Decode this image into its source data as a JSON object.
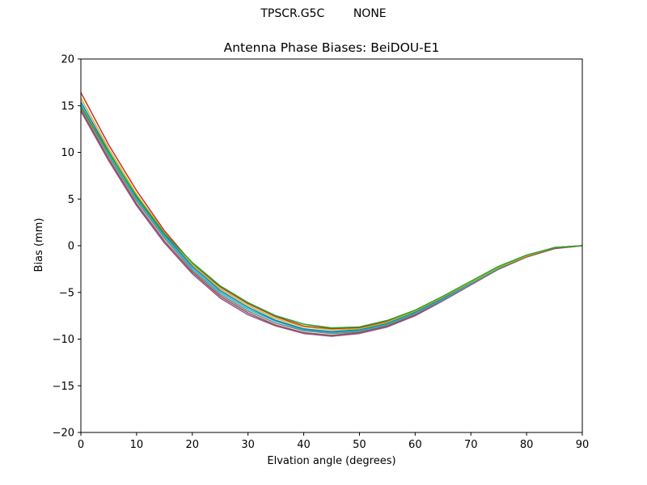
{
  "figure": {
    "suptitle": "TPSCR.G5C        NONE"
  },
  "chart_data": {
    "type": "line",
    "title": "Antenna Phase Biases: BeiDOU-E1",
    "xlabel": "Elvation angle (degrees)",
    "ylabel": "Bias (mm)",
    "xlim": [
      0,
      90
    ],
    "ylim": [
      -20,
      20
    ],
    "xticks": [
      0,
      10,
      20,
      30,
      40,
      50,
      60,
      70,
      80,
      90
    ],
    "yticks": [
      -20,
      -15,
      -10,
      -5,
      0,
      5,
      10,
      15,
      20
    ],
    "ytick_labels": [
      "−20",
      "−15",
      "−10",
      "−5",
      "0",
      "5",
      "10",
      "15",
      "20"
    ],
    "grid": false,
    "x": [
      0,
      5,
      10,
      15,
      20,
      25,
      30,
      35,
      40,
      45,
      50,
      55,
      60,
      65,
      70,
      75,
      80,
      85,
      90
    ],
    "series": [
      {
        "color": "#9b4f96",
        "values": [
          14.4,
          9.1,
          4.3,
          0.3,
          -3.0,
          -5.6,
          -7.4,
          -8.6,
          -9.4,
          -9.7,
          -9.4,
          -8.7,
          -7.5,
          -5.9,
          -4.2,
          -2.5,
          -1.2,
          -0.3,
          0.0
        ]
      },
      {
        "color": "#8c564b",
        "values": [
          14.6,
          9.3,
          4.5,
          0.5,
          -2.8,
          -5.4,
          -7.2,
          -8.5,
          -9.3,
          -9.6,
          -9.3,
          -8.6,
          -7.4,
          -5.8,
          -4.1,
          -2.5,
          -1.2,
          -0.3,
          0.0
        ]
      },
      {
        "color": "#7f7f7f",
        "values": [
          14.9,
          9.6,
          4.8,
          0.8,
          -2.6,
          -5.2,
          -7.0,
          -8.3,
          -9.1,
          -9.4,
          -9.2,
          -8.5,
          -7.3,
          -5.8,
          -4.1,
          -2.4,
          -1.1,
          -0.2,
          0.0
        ]
      },
      {
        "color": "#17becf",
        "values": [
          15.1,
          9.8,
          5.0,
          1.0,
          -2.4,
          -5.0,
          -6.8,
          -8.1,
          -9.0,
          -9.3,
          -9.1,
          -8.4,
          -7.2,
          -5.7,
          -4.0,
          -2.4,
          -1.1,
          -0.2,
          0.0
        ]
      },
      {
        "color": "#1f77b4",
        "values": [
          15.4,
          10.1,
          5.2,
          1.2,
          -2.2,
          -4.8,
          -6.6,
          -8.0,
          -8.9,
          -9.2,
          -9.0,
          -8.3,
          -7.1,
          -5.6,
          -3.9,
          -2.3,
          -1.1,
          -0.2,
          0.0
        ]
      },
      {
        "color": "#d62728",
        "values": [
          16.4,
          10.8,
          5.9,
          1.6,
          -1.9,
          -4.4,
          -6.2,
          -7.6,
          -8.6,
          -8.9,
          -8.8,
          -8.1,
          -7.0,
          -5.5,
          -3.9,
          -2.3,
          -1.1,
          -0.2,
          0.0
        ]
      },
      {
        "color": "#bcbd22",
        "values": [
          15.8,
          10.4,
          5.5,
          1.4,
          -2.0,
          -4.6,
          -6.4,
          -7.8,
          -8.7,
          -9.0,
          -8.9,
          -8.2,
          -7.0,
          -5.5,
          -3.9,
          -2.3,
          -1.1,
          -0.2,
          0.0
        ]
      },
      {
        "color": "#2ca02c",
        "values": [
          14.9,
          10.0,
          5.3,
          1.3,
          -1.8,
          -4.3,
          -6.1,
          -7.5,
          -8.4,
          -8.8,
          -8.7,
          -8.0,
          -6.9,
          -5.4,
          -3.8,
          -2.2,
          -1.0,
          -0.2,
          0.0
        ]
      }
    ]
  }
}
